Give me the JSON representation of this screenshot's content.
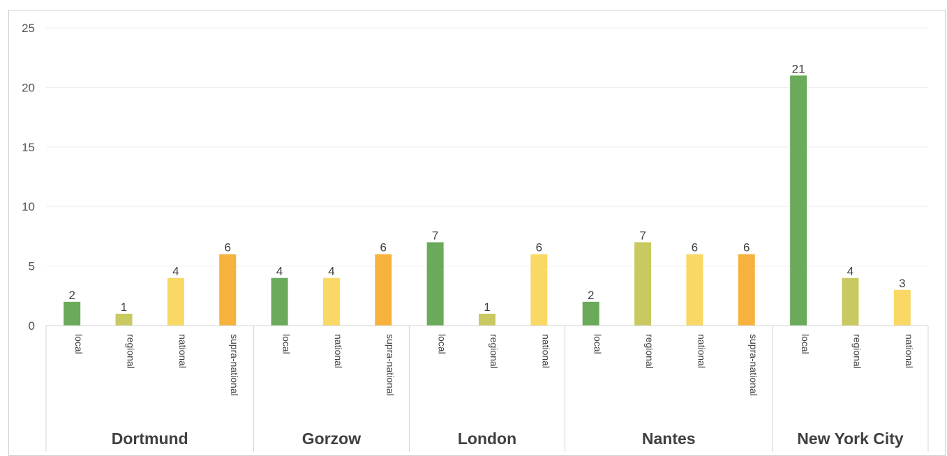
{
  "chart_data": {
    "type": "bar",
    "title": "",
    "xlabel": "",
    "ylabel": "",
    "ylim": [
      0,
      25
    ],
    "yticks": [
      0,
      5,
      10,
      15,
      20,
      25
    ],
    "grid": true,
    "groups": [
      {
        "name": "Dortmund",
        "bars": [
          {
            "category": "local",
            "value": 2
          },
          {
            "category": "regional",
            "value": 1
          },
          {
            "category": "national",
            "value": 4
          },
          {
            "category": "supra-national",
            "value": 6
          }
        ]
      },
      {
        "name": "Gorzow",
        "bars": [
          {
            "category": "local",
            "value": 4
          },
          {
            "category": "national",
            "value": 4
          },
          {
            "category": "supra-national",
            "value": 6
          }
        ]
      },
      {
        "name": "London",
        "bars": [
          {
            "category": "local",
            "value": 7
          },
          {
            "category": "regional",
            "value": 1
          },
          {
            "category": "national",
            "value": 6
          }
        ]
      },
      {
        "name": "Nantes",
        "bars": [
          {
            "category": "local",
            "value": 2
          },
          {
            "category": "regional",
            "value": 7
          },
          {
            "category": "national",
            "value": 6
          },
          {
            "category": "supra-national",
            "value": 6
          }
        ]
      },
      {
        "name": "New York City",
        "bars": [
          {
            "category": "local",
            "value": 21
          },
          {
            "category": "regional",
            "value": 4
          },
          {
            "category": "national",
            "value": 3
          }
        ]
      }
    ],
    "colors": {
      "local": "#6aaa5a",
      "regional": "#c9c961",
      "national": "#f9d865",
      "supra-national": "#f7b23e"
    }
  }
}
